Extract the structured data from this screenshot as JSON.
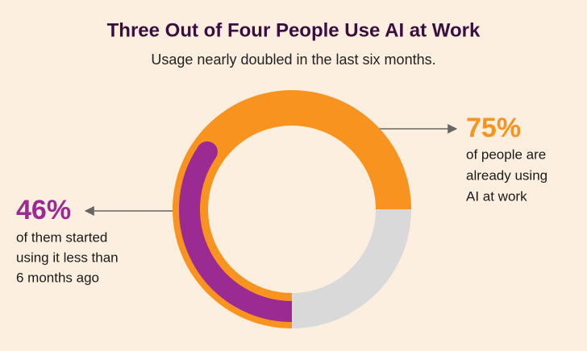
{
  "chart_data": {
    "type": "donut",
    "title": "Three Out of Four People Use AI at Work",
    "subtitle": "Usage nearly doubled in the last six months.",
    "values": [
      75,
      25
    ],
    "colors": [
      "#f7931e",
      "#d9d9d9"
    ],
    "value_labels": [
      "75%",
      null
    ],
    "inner": {
      "value": 46,
      "value_label": "46%",
      "color": "#9c2a93"
    },
    "notes": [
      [
        "of people are",
        "already using",
        "AI at work"
      ],
      [
        "of them started",
        "using it less than",
        "6 months ago"
      ]
    ]
  }
}
